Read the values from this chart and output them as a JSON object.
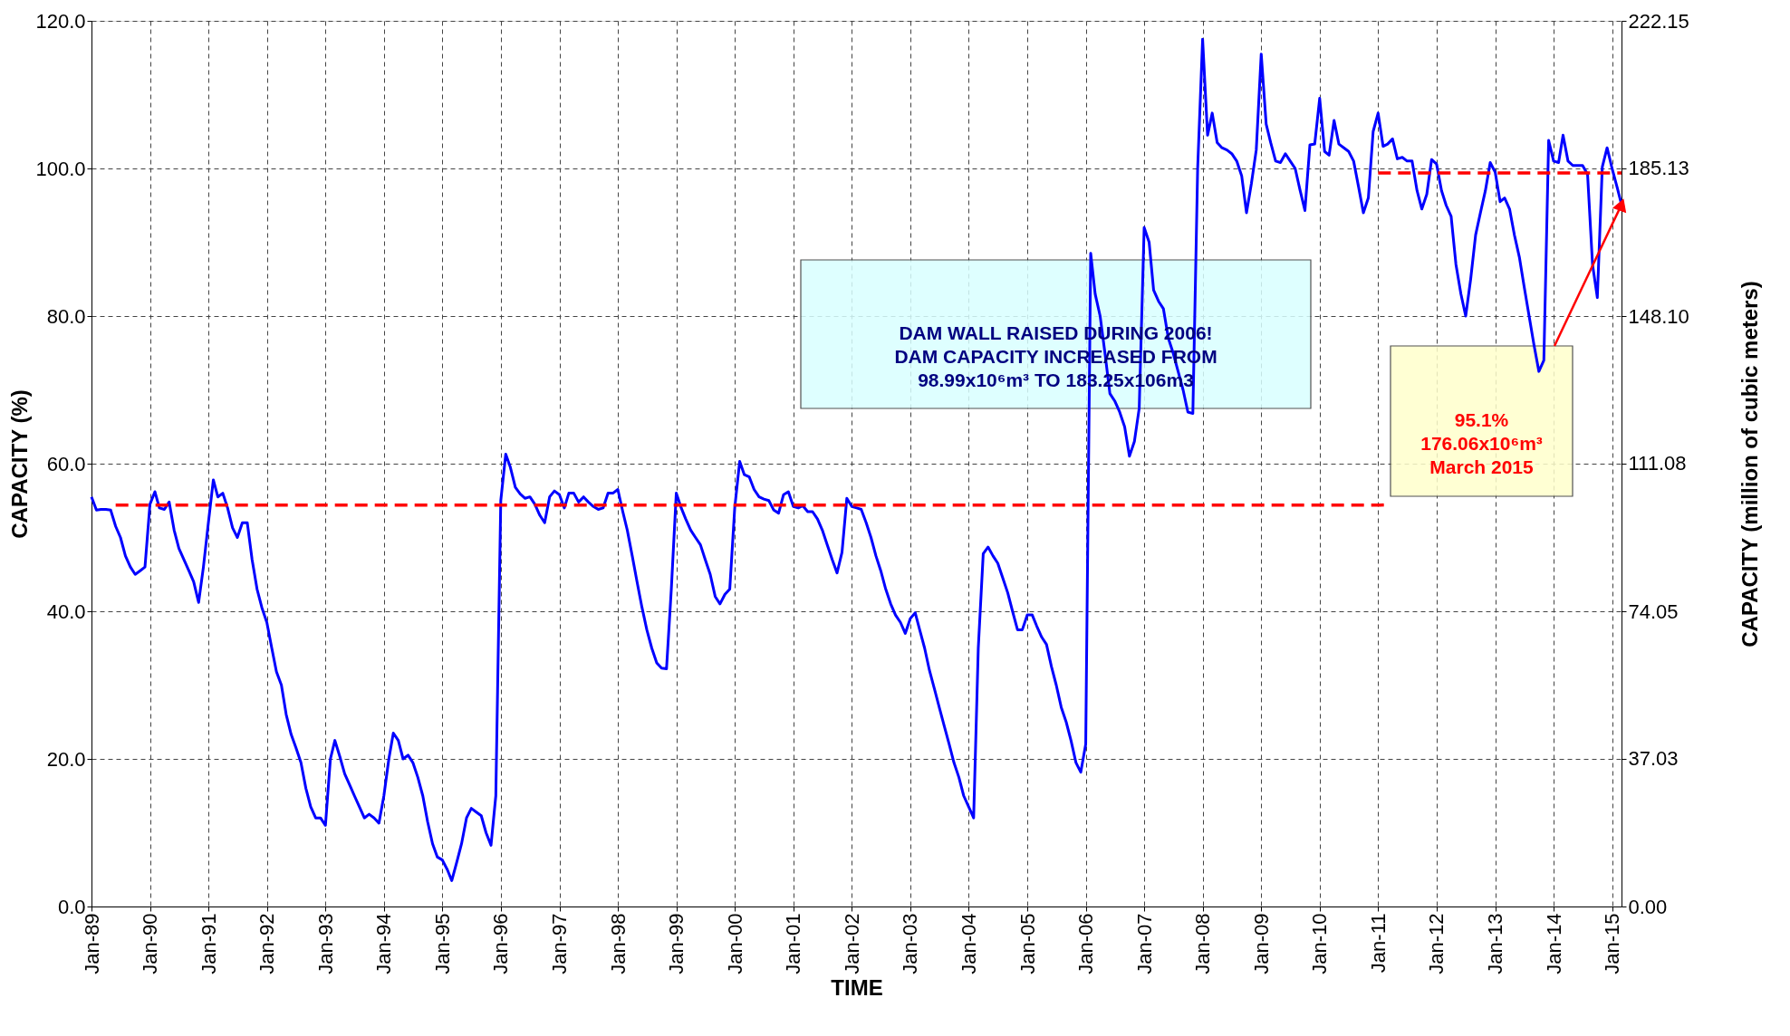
{
  "chart_data": {
    "type": "line",
    "xlabel": "TIME",
    "ylabel": "CAPACITY (%)",
    "y2label": "CAPACITY (million of cubic meters)",
    "x": [
      "1989-01",
      "1989-02",
      "1989-03",
      "1989-04",
      "1989-05",
      "1989-06",
      "1989-07",
      "1989-08",
      "1989-09",
      "1989-10",
      "1989-11",
      "1989-12",
      "1990-01",
      "1990-02",
      "1990-03",
      "1990-04",
      "1990-05",
      "1990-06",
      "1990-07",
      "1990-08",
      "1990-09",
      "1990-10",
      "1990-11",
      "1990-12",
      "1991-01",
      "1991-02",
      "1991-03",
      "1991-04",
      "1991-05",
      "1991-06",
      "1991-07",
      "1991-08",
      "1991-09",
      "1991-10",
      "1991-11",
      "1991-12",
      "1992-01",
      "1992-02",
      "1992-03",
      "1992-04",
      "1992-05",
      "1992-06",
      "1992-07",
      "1992-08",
      "1992-09",
      "1992-10",
      "1992-11",
      "1992-12",
      "1993-01",
      "1993-02",
      "1993-03",
      "1993-04",
      "1993-05",
      "1993-06",
      "1993-07",
      "1993-08",
      "1993-09",
      "1993-10",
      "1993-11",
      "1993-12",
      "1994-01",
      "1994-02",
      "1994-03",
      "1994-04",
      "1994-05",
      "1994-06",
      "1994-07",
      "1994-08",
      "1994-09",
      "1994-10",
      "1994-11",
      "1994-12",
      "1995-01",
      "1995-02",
      "1995-03",
      "1995-04",
      "1995-05",
      "1995-06",
      "1995-07",
      "1995-08",
      "1995-09",
      "1995-10",
      "1995-11",
      "1995-12",
      "1996-01",
      "1996-02",
      "1996-03",
      "1996-04",
      "1996-05",
      "1996-06",
      "1996-07",
      "1996-08",
      "1996-09",
      "1996-10",
      "1996-11",
      "1996-12",
      "1997-01",
      "1997-02",
      "1997-03",
      "1997-04",
      "1997-05",
      "1997-06",
      "1997-07",
      "1997-08",
      "1997-09",
      "1997-10",
      "1997-11",
      "1997-12",
      "1998-01",
      "1998-02",
      "1998-03",
      "1998-04",
      "1998-05",
      "1998-06",
      "1998-07",
      "1998-08",
      "1998-09",
      "1998-10",
      "1998-11",
      "1998-12",
      "1999-01",
      "1999-02",
      "1999-03",
      "1999-04",
      "1999-05",
      "1999-06",
      "1999-07",
      "1999-08",
      "1999-09",
      "1999-10",
      "1999-11",
      "1999-12",
      "2000-01",
      "2000-02",
      "2000-03",
      "2000-04",
      "2000-05",
      "2000-06",
      "2000-07",
      "2000-08",
      "2000-09",
      "2000-10",
      "2000-11",
      "2000-12",
      "2001-01",
      "2001-02",
      "2001-03",
      "2001-04",
      "2001-05",
      "2001-06",
      "2001-07",
      "2001-08",
      "2001-09",
      "2001-10",
      "2001-11",
      "2001-12",
      "2002-01",
      "2002-02",
      "2002-03",
      "2002-04",
      "2002-05",
      "2002-06",
      "2002-07",
      "2002-08",
      "2002-09",
      "2002-10",
      "2002-11",
      "2002-12",
      "2003-01",
      "2003-02",
      "2003-03",
      "2003-04",
      "2003-05",
      "2003-06",
      "2003-07",
      "2003-08",
      "2003-09",
      "2003-10",
      "2003-11",
      "2003-12",
      "2004-01",
      "2004-02",
      "2004-03",
      "2004-04",
      "2004-05",
      "2004-06",
      "2004-07",
      "2004-08",
      "2004-09",
      "2004-10",
      "2004-11",
      "2004-12",
      "2005-01",
      "2005-02",
      "2005-03",
      "2005-04",
      "2005-05",
      "2005-06",
      "2005-07",
      "2005-08",
      "2005-09",
      "2005-10",
      "2005-11",
      "2005-12",
      "2006-01",
      "2006-02",
      "2006-03",
      "2006-04",
      "2006-05",
      "2006-06",
      "2006-07",
      "2006-08",
      "2006-09",
      "2006-10",
      "2006-11",
      "2006-12",
      "2007-01",
      "2007-02",
      "2007-03",
      "2007-04",
      "2007-05",
      "2007-06",
      "2007-07",
      "2007-08",
      "2007-09",
      "2007-10",
      "2007-11",
      "2007-12",
      "2008-01",
      "2008-02",
      "2008-03",
      "2008-04",
      "2008-05",
      "2008-06",
      "2008-07",
      "2008-08",
      "2008-09",
      "2008-10",
      "2008-11",
      "2008-12",
      "2009-01",
      "2009-02",
      "2009-03",
      "2009-04",
      "2009-05",
      "2009-06",
      "2009-07",
      "2009-08",
      "2009-09",
      "2009-10",
      "2009-11",
      "2009-12",
      "2010-01",
      "2010-02",
      "2010-03",
      "2010-04",
      "2010-05",
      "2010-06",
      "2010-07",
      "2010-08",
      "2010-09",
      "2010-10",
      "2010-11",
      "2010-12",
      "2011-01",
      "2011-02",
      "2011-03",
      "2011-04",
      "2011-05",
      "2011-06",
      "2011-07",
      "2011-08",
      "2011-09",
      "2011-10",
      "2011-11",
      "2011-12",
      "2012-01",
      "2012-02",
      "2012-03",
      "2012-04",
      "2012-05",
      "2012-06",
      "2012-07",
      "2012-08",
      "2012-09",
      "2012-10",
      "2012-11",
      "2012-12",
      "2013-01",
      "2013-02",
      "2013-03",
      "2013-04",
      "2013-05",
      "2013-06",
      "2013-07",
      "2013-08",
      "2013-09",
      "2013-10",
      "2013-11",
      "2013-12",
      "2014-01",
      "2014-02",
      "2014-03",
      "2014-04",
      "2014-05",
      "2014-06",
      "2014-07",
      "2014-08",
      "2014-09",
      "2014-10",
      "2014-11",
      "2014-12",
      "2015-01",
      "2015-02",
      "2015-03"
    ],
    "series": [
      {
        "color": "#0000ff",
        "line_style": "solid",
        "values": [
          55.5,
          53.7,
          53.8,
          53.8,
          53.7,
          51.5,
          50,
          47.5,
          46,
          45,
          45.5,
          46,
          54.5,
          56.2,
          54,
          53.8,
          54.8,
          51,
          48.5,
          47,
          45.5,
          44,
          41.2,
          46,
          52,
          57.8,
          55.5,
          56,
          54,
          51.3,
          50,
          52,
          52,
          47,
          43,
          40.5,
          38.5,
          35,
          31.8,
          30,
          26,
          23.3,
          21.5,
          19.5,
          16,
          13.5,
          12,
          12,
          11,
          20,
          22.5,
          20.3,
          18,
          16.5,
          15,
          13.5,
          12,
          12.5,
          12,
          11.3,
          15,
          20,
          23.5,
          22.5,
          20,
          20.5,
          19.5,
          17.5,
          15,
          11.5,
          8.5,
          6.7,
          6.3,
          5,
          3.5,
          6,
          8.5,
          12,
          13.3,
          12.8,
          12.3,
          10,
          8.3,
          15,
          55,
          61.3,
          59.5,
          56.8,
          55.9,
          55.3,
          55.5,
          54.5,
          53,
          52,
          55.5,
          56.3,
          55.8,
          54,
          56,
          56,
          54.8,
          55.5,
          54.8,
          54.2,
          53.8,
          54,
          56,
          56,
          56.5,
          53.5,
          51,
          47.5,
          44,
          40.5,
          37.5,
          35,
          33,
          32.3,
          32.2,
          43,
          56,
          54,
          52.5,
          51,
          50,
          49,
          47,
          45,
          42,
          41,
          42.3,
          43,
          54,
          60.3,
          58.5,
          58.2,
          56.5,
          55.5,
          55.2,
          55,
          53.7,
          53.3,
          55.8,
          56.2,
          54.2,
          54,
          54.3,
          53.5,
          53.5,
          52.5,
          51,
          49,
          47,
          45.2,
          48,
          55.3,
          54.2,
          54,
          53.8,
          52,
          50,
          47.5,
          45.5,
          43,
          41,
          39.5,
          38.5,
          37,
          39,
          39.8,
          37.5,
          35,
          32,
          29.5,
          27,
          24.5,
          22,
          19.5,
          17.5,
          15,
          13.5,
          12,
          35,
          47.8,
          48.7,
          47.5,
          46.5,
          44.5,
          42.5,
          40,
          37.5,
          37.5,
          39.5,
          39.5,
          38,
          36.5,
          35.5,
          32.5,
          30,
          27,
          25,
          22.5,
          19.5,
          18.2,
          22,
          88.5,
          83,
          80,
          75,
          69.5,
          68.5,
          67,
          65,
          61,
          63,
          67.5,
          92,
          90,
          83.5,
          82,
          81,
          77,
          75,
          72.5,
          70,
          67,
          66.8,
          100,
          117.5,
          104.5,
          107.5,
          103.5,
          102.8,
          102.5,
          102,
          101,
          99,
          94,
          98,
          102.5,
          115.5,
          106,
          103.5,
          101,
          100.8,
          102,
          101,
          100,
          97,
          94.3,
          103.2,
          103.3,
          109.5,
          102.3,
          101.8,
          106.5,
          103.3,
          102.8,
          102.3,
          101,
          97.5,
          94,
          96,
          105,
          107.5,
          103,
          103.3,
          104,
          101.3,
          101.5,
          101,
          101,
          97,
          94.5,
          96.5,
          101.2,
          100.6,
          97,
          95,
          93.5,
          87,
          83,
          80,
          85,
          91,
          94,
          97,
          100.8,
          99.5,
          95.5,
          96,
          94.5,
          91,
          88,
          84,
          80,
          76,
          72.5,
          74,
          103.8,
          101,
          100.8,
          104.5,
          101,
          100.4,
          100.4,
          100.4,
          99.2,
          87,
          82.5,
          100.2,
          102.8,
          100,
          97.5,
          95.1
        ]
      },
      {
        "color": "#ff0000",
        "line_style": "dashed",
        "x": [
          "1989-06",
          "2011-03"
        ],
        "values": [
          54.4,
          54.4
        ]
      },
      {
        "color": "#ff0000",
        "line_style": "dashed",
        "x": [
          "2011-01",
          "2015-03"
        ],
        "values": [
          99.4,
          99.4
        ]
      }
    ],
    "xlim": [
      "1989-01",
      "2015-03"
    ],
    "xticks": [
      {
        "value": "1989-01",
        "label": "Jan-89"
      },
      {
        "value": "1990-01",
        "label": "Jan-90"
      },
      {
        "value": "1991-01",
        "label": "Jan-91"
      },
      {
        "value": "1992-01",
        "label": "Jan-92"
      },
      {
        "value": "1993-01",
        "label": "Jan-93"
      },
      {
        "value": "1994-01",
        "label": "Jan-94"
      },
      {
        "value": "1995-01",
        "label": "Jan-95"
      },
      {
        "value": "1996-01",
        "label": "Jan-96"
      },
      {
        "value": "1997-01",
        "label": "Jan-97"
      },
      {
        "value": "1998-01",
        "label": "Jan-98"
      },
      {
        "value": "1999-01",
        "label": "Jan-99"
      },
      {
        "value": "2000-01",
        "label": "Jan-00"
      },
      {
        "value": "2001-01",
        "label": "Jan-01"
      },
      {
        "value": "2002-01",
        "label": "Jan-02"
      },
      {
        "value": "2003-01",
        "label": "Jan-03"
      },
      {
        "value": "2004-01",
        "label": "Jan-04"
      },
      {
        "value": "2005-01",
        "label": "Jan-05"
      },
      {
        "value": "2006-01",
        "label": "Jan-06"
      },
      {
        "value": "2007-01",
        "label": "Jan-07"
      },
      {
        "value": "2008-01",
        "label": "Jan-08"
      },
      {
        "value": "2009-01",
        "label": "Jan-09"
      },
      {
        "value": "2010-01",
        "label": "Jan-10"
      },
      {
        "value": "2011-01",
        "label": "Jan-11"
      },
      {
        "value": "2012-01",
        "label": "Jan-12"
      },
      {
        "value": "2013-01",
        "label": "Jan-13"
      },
      {
        "value": "2014-01",
        "label": "Jan-14"
      },
      {
        "value": "2015-01",
        "label": "Jan-15"
      }
    ],
    "ylim": [
      0,
      120
    ],
    "yticks": [
      {
        "value": 0,
        "label": "0.0"
      },
      {
        "value": 20,
        "label": "20.0"
      },
      {
        "value": 40,
        "label": "40.0"
      },
      {
        "value": 60,
        "label": "60.0"
      },
      {
        "value": 80,
        "label": "80.0"
      },
      {
        "value": 100,
        "label": "100.0"
      },
      {
        "value": 120,
        "label": "120.0"
      }
    ],
    "y2lim": [
      0,
      222.15
    ],
    "y2ticks": [
      {
        "value": 0,
        "label": "0.00"
      },
      37.03,
      74.05,
      111.08,
      {
        "value": 148.1,
        "label": "148.10"
      },
      185.13,
      222.15
    ],
    "grid": true,
    "annotations": [
      "DAM WALL RAISED DURING 2006!\nDAM CAPACITY INCREASED FROM\n98.99x10⁶m³ TO 183.25x106m3",
      "95.1%\n176.06x10⁶m³\nMarch 2015"
    ]
  }
}
